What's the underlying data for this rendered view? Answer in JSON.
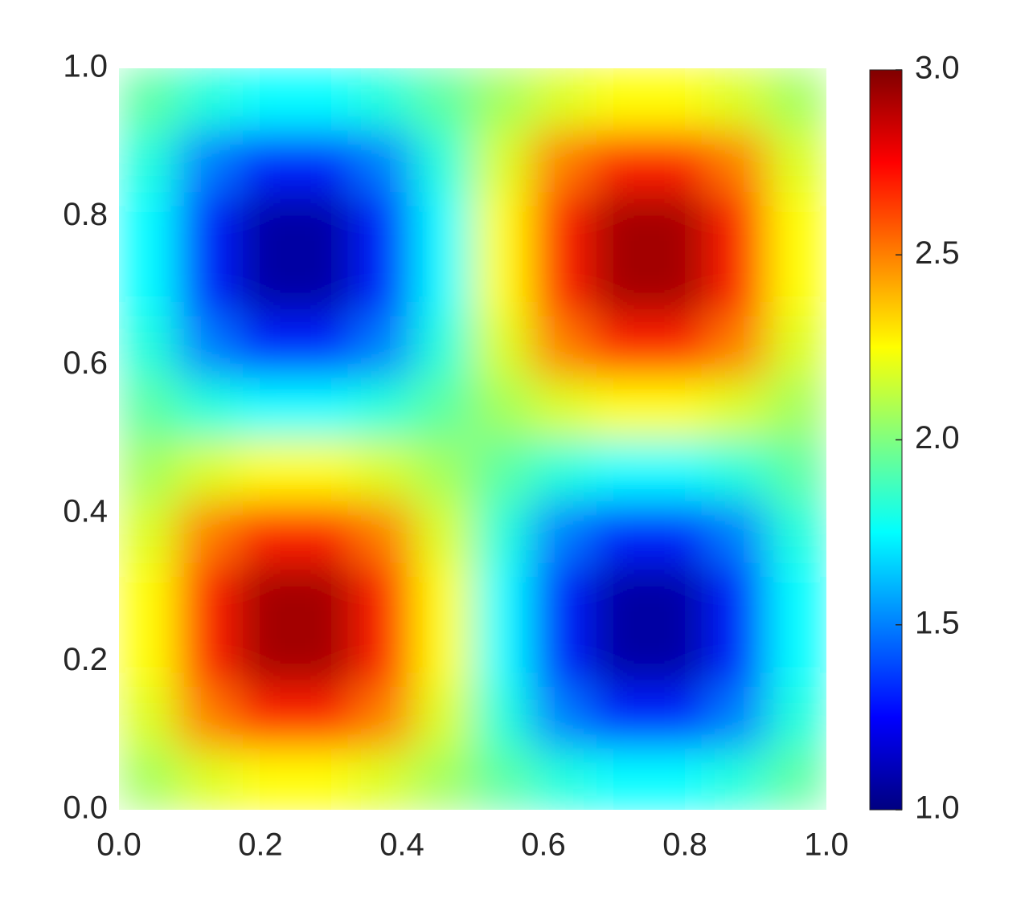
{
  "chart_data": {
    "type": "heatmap",
    "colormap": "jet",
    "x": [
      0.042,
      0.125,
      0.208,
      0.292,
      0.375,
      0.458,
      0.542,
      0.625,
      0.708,
      0.792,
      0.875,
      0.958
    ],
    "y": [
      0.042,
      0.125,
      0.208,
      0.292,
      0.375,
      0.458,
      0.542,
      0.625,
      0.708,
      0.792,
      0.875,
      0.958
    ],
    "z": [
      [
        2.07,
        2.18,
        2.25,
        2.25,
        2.18,
        2.07,
        1.93,
        1.82,
        1.75,
        1.75,
        1.82,
        1.93
      ],
      [
        2.18,
        2.5,
        2.68,
        2.68,
        2.5,
        2.18,
        1.82,
        1.5,
        1.32,
        1.32,
        1.5,
        1.82
      ],
      [
        2.25,
        2.68,
        2.93,
        2.93,
        2.68,
        2.25,
        1.75,
        1.32,
        1.07,
        1.07,
        1.32,
        1.75
      ],
      [
        2.25,
        2.68,
        2.93,
        2.93,
        2.68,
        2.25,
        1.75,
        1.32,
        1.07,
        1.07,
        1.32,
        1.75
      ],
      [
        2.18,
        2.5,
        2.68,
        2.68,
        2.5,
        2.18,
        1.82,
        1.5,
        1.32,
        1.32,
        1.5,
        1.82
      ],
      [
        2.07,
        2.18,
        2.25,
        2.25,
        2.18,
        2.07,
        1.93,
        1.82,
        1.75,
        1.75,
        1.82,
        1.93
      ],
      [
        1.93,
        1.82,
        1.75,
        1.75,
        1.82,
        1.93,
        2.07,
        2.18,
        2.25,
        2.25,
        2.18,
        2.07
      ],
      [
        1.82,
        1.5,
        1.32,
        1.32,
        1.5,
        1.82,
        2.18,
        2.5,
        2.68,
        2.68,
        2.5,
        2.18
      ],
      [
        1.75,
        1.32,
        1.07,
        1.07,
        1.32,
        1.75,
        2.25,
        2.68,
        2.93,
        2.93,
        2.68,
        2.25
      ],
      [
        1.75,
        1.32,
        1.07,
        1.07,
        1.32,
        1.75,
        2.25,
        2.68,
        2.93,
        2.93,
        2.68,
        2.25
      ],
      [
        1.82,
        1.5,
        1.32,
        1.32,
        1.5,
        1.82,
        2.18,
        2.5,
        2.68,
        2.68,
        2.5,
        2.18
      ],
      [
        1.93,
        1.82,
        1.75,
        1.75,
        1.82,
        1.93,
        2.07,
        2.18,
        2.25,
        2.25,
        2.18,
        2.07
      ]
    ],
    "xlim": [
      0,
      1
    ],
    "ylim": [
      0,
      1
    ],
    "xticks": [
      {
        "value": 0,
        "label": "0.0"
      },
      0.2,
      0.4,
      0.6,
      0.8,
      {
        "value": 1,
        "label": "1.0"
      }
    ],
    "yticks": [
      {
        "value": 0,
        "label": "0.0"
      },
      0.2,
      0.4,
      0.6,
      0.8,
      {
        "value": 1,
        "label": "1.0"
      }
    ],
    "zlim": [
      1,
      3
    ],
    "zticks": [
      {
        "value": 1,
        "label": "1.0"
      },
      1.5,
      {
        "value": 2,
        "label": "2.0"
      },
      2.5,
      {
        "value": 3,
        "label": "3.0"
      }
    ]
  }
}
